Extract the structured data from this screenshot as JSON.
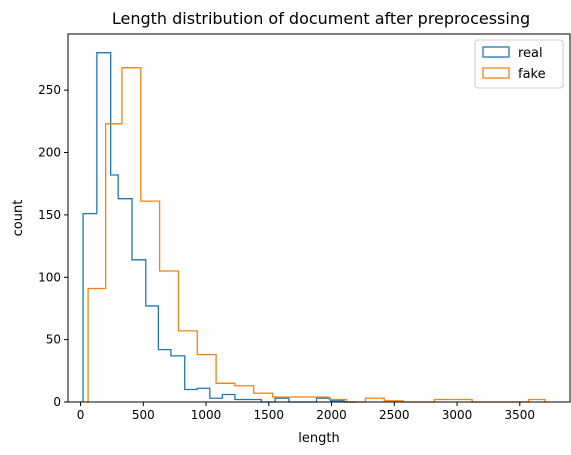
{
  "chart_data": {
    "type": "histogram",
    "title": "Length distribution of document after preprocessing",
    "xlabel": "length",
    "ylabel": "count",
    "xlim": [
      -100,
      3900
    ],
    "ylim": [
      0,
      295
    ],
    "x_ticks": [
      0,
      500,
      1000,
      1500,
      2000,
      2500,
      3000,
      3500
    ],
    "y_ticks": [
      0,
      50,
      100,
      150,
      200,
      250
    ],
    "grid": false,
    "legend_position": "top-right",
    "series": [
      {
        "name": "real",
        "color": "#1f77b4",
        "edges": [
          20,
          130,
          240,
          300,
          410,
          520,
          620,
          720,
          830,
          930,
          1030,
          1130,
          1230,
          1440,
          1550,
          1660,
          1770,
          1880,
          1990,
          2100,
          2200
        ],
        "counts": [
          151,
          280,
          182,
          163,
          114,
          77,
          42,
          37,
          10,
          11,
          3,
          6,
          2,
          0,
          3,
          0,
          0,
          3,
          1,
          0
        ]
      },
      {
        "name": "fake",
        "color": "#ff7f0e",
        "edges": [
          60,
          200,
          330,
          480,
          630,
          780,
          930,
          1080,
          1230,
          1380,
          1530,
          1680,
          1830,
          1980,
          2120,
          2270,
          2420,
          2570,
          2820,
          3120,
          3570,
          3700
        ],
        "counts": [
          91,
          223,
          268,
          161,
          105,
          57,
          38,
          15,
          13,
          7,
          4,
          4,
          4,
          2,
          0,
          3,
          1,
          0,
          2,
          0,
          2
        ]
      }
    ]
  }
}
